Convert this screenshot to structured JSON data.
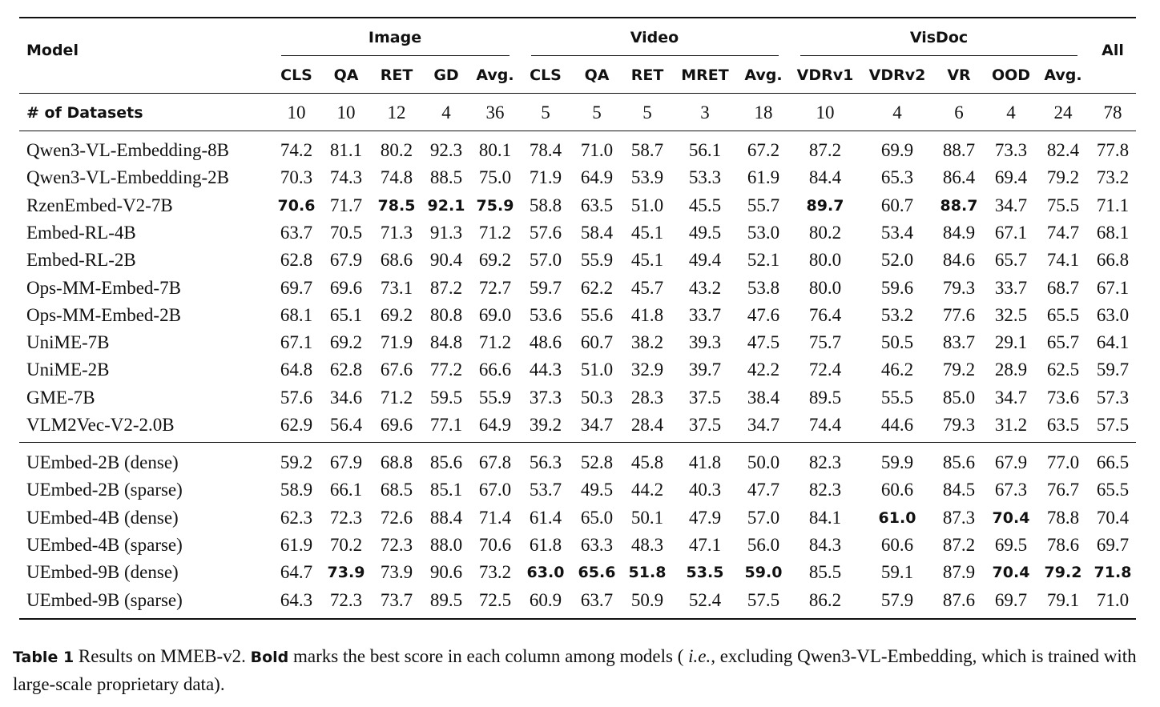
{
  "header": {
    "model": "Model",
    "all": "All",
    "groups": [
      {
        "label": "Image",
        "columns": [
          "CLS",
          "QA",
          "RET",
          "GD",
          "Avg."
        ]
      },
      {
        "label": "Video",
        "columns": [
          "CLS",
          "QA",
          "RET",
          "MRET",
          "Avg."
        ]
      },
      {
        "label": "VisDoc",
        "columns": [
          "VDRv1",
          "VDRv2",
          "VR",
          "OOD",
          "Avg."
        ]
      }
    ]
  },
  "datasets_row": {
    "label": "# of Datasets",
    "values": [
      "10",
      "10",
      "12",
      "4",
      "36",
      "5",
      "5",
      "5",
      "3",
      "18",
      "10",
      "4",
      "6",
      "4",
      "24",
      "78"
    ]
  },
  "sections": [
    {
      "rows": [
        {
          "model": "Qwen3-VL-Embedding-8B",
          "values": [
            "74.2",
            "81.1",
            "80.2",
            "92.3",
            "80.1",
            "78.4",
            "71.0",
            "58.7",
            "56.1",
            "67.2",
            "87.2",
            "69.9",
            "88.7",
            "73.3",
            "82.4",
            "77.8"
          ],
          "bold": []
        },
        {
          "model": "Qwen3-VL-Embedding-2B",
          "values": [
            "70.3",
            "74.3",
            "74.8",
            "88.5",
            "75.0",
            "71.9",
            "64.9",
            "53.9",
            "53.3",
            "61.9",
            "84.4",
            "65.3",
            "86.4",
            "69.4",
            "79.2",
            "73.2"
          ],
          "bold": []
        },
        {
          "model": "RzenEmbed-V2-7B",
          "values": [
            "70.6",
            "71.7",
            "78.5",
            "92.1",
            "75.9",
            "58.8",
            "63.5",
            "51.0",
            "45.5",
            "55.7",
            "89.7",
            "60.7",
            "88.7",
            "34.7",
            "75.5",
            "71.1"
          ],
          "bold": [
            0,
            2,
            3,
            4,
            10,
            12
          ]
        },
        {
          "model": "Embed-RL-4B",
          "values": [
            "63.7",
            "70.5",
            "71.3",
            "91.3",
            "71.2",
            "57.6",
            "58.4",
            "45.1",
            "49.5",
            "53.0",
            "80.2",
            "53.4",
            "84.9",
            "67.1",
            "74.7",
            "68.1"
          ],
          "bold": []
        },
        {
          "model": "Embed-RL-2B",
          "values": [
            "62.8",
            "67.9",
            "68.6",
            "90.4",
            "69.2",
            "57.0",
            "55.9",
            "45.1",
            "49.4",
            "52.1",
            "80.0",
            "52.0",
            "84.6",
            "65.7",
            "74.1",
            "66.8"
          ],
          "bold": []
        },
        {
          "model": "Ops-MM-Embed-7B",
          "values": [
            "69.7",
            "69.6",
            "73.1",
            "87.2",
            "72.7",
            "59.7",
            "62.2",
            "45.7",
            "43.2",
            "53.8",
            "80.0",
            "59.6",
            "79.3",
            "33.7",
            "68.7",
            "67.1"
          ],
          "bold": []
        },
        {
          "model": "Ops-MM-Embed-2B",
          "values": [
            "68.1",
            "65.1",
            "69.2",
            "80.8",
            "69.0",
            "53.6",
            "55.6",
            "41.8",
            "33.7",
            "47.6",
            "76.4",
            "53.2",
            "77.6",
            "32.5",
            "65.5",
            "63.0"
          ],
          "bold": []
        },
        {
          "model": "UniME-7B",
          "values": [
            "67.1",
            "69.2",
            "71.9",
            "84.8",
            "71.2",
            "48.6",
            "60.7",
            "38.2",
            "39.3",
            "47.5",
            "75.7",
            "50.5",
            "83.7",
            "29.1",
            "65.7",
            "64.1"
          ],
          "bold": []
        },
        {
          "model": "UniME-2B",
          "values": [
            "64.8",
            "62.8",
            "67.6",
            "77.2",
            "66.6",
            "44.3",
            "51.0",
            "32.9",
            "39.7",
            "42.2",
            "72.4",
            "46.2",
            "79.2",
            "28.9",
            "62.5",
            "59.7"
          ],
          "bold": []
        },
        {
          "model": "GME-7B",
          "values": [
            "57.6",
            "34.6",
            "71.2",
            "59.5",
            "55.9",
            "37.3",
            "50.3",
            "28.3",
            "37.5",
            "38.4",
            "89.5",
            "55.5",
            "85.0",
            "34.7",
            "73.6",
            "57.3"
          ],
          "bold": []
        },
        {
          "model": "VLM2Vec-V2-2.0B",
          "values": [
            "62.9",
            "56.4",
            "69.6",
            "77.1",
            "64.9",
            "39.2",
            "34.7",
            "28.4",
            "37.5",
            "34.7",
            "74.4",
            "44.6",
            "79.3",
            "31.2",
            "63.5",
            "57.5"
          ],
          "bold": []
        }
      ]
    },
    {
      "rows": [
        {
          "model": "UEmbed-2B (dense)",
          "values": [
            "59.2",
            "67.9",
            "68.8",
            "85.6",
            "67.8",
            "56.3",
            "52.8",
            "45.8",
            "41.8",
            "50.0",
            "82.3",
            "59.9",
            "85.6",
            "67.9",
            "77.0",
            "66.5"
          ],
          "bold": []
        },
        {
          "model": "UEmbed-2B (sparse)",
          "values": [
            "58.9",
            "66.1",
            "68.5",
            "85.1",
            "67.0",
            "53.7",
            "49.5",
            "44.2",
            "40.3",
            "47.7",
            "82.3",
            "60.6",
            "84.5",
            "67.3",
            "76.7",
            "65.5"
          ],
          "bold": []
        },
        {
          "model": "UEmbed-4B (dense)",
          "values": [
            "62.3",
            "72.3",
            "72.6",
            "88.4",
            "71.4",
            "61.4",
            "65.0",
            "50.1",
            "47.9",
            "57.0",
            "84.1",
            "61.0",
            "87.3",
            "70.4",
            "78.8",
            "70.4"
          ],
          "bold": [
            11,
            13
          ]
        },
        {
          "model": "UEmbed-4B (sparse)",
          "values": [
            "61.9",
            "70.2",
            "72.3",
            "88.0",
            "70.6",
            "61.8",
            "63.3",
            "48.3",
            "47.1",
            "56.0",
            "84.3",
            "60.6",
            "87.2",
            "69.5",
            "78.6",
            "69.7"
          ],
          "bold": []
        },
        {
          "model": "UEmbed-9B (dense)",
          "values": [
            "64.7",
            "73.9",
            "73.9",
            "90.6",
            "73.2",
            "63.0",
            "65.6",
            "51.8",
            "53.5",
            "59.0",
            "85.5",
            "59.1",
            "87.9",
            "70.4",
            "79.2",
            "71.8"
          ],
          "bold": [
            1,
            5,
            6,
            7,
            8,
            9,
            13,
            14,
            15
          ]
        },
        {
          "model": "UEmbed-9B (sparse)",
          "values": [
            "64.3",
            "72.3",
            "73.7",
            "89.5",
            "72.5",
            "60.9",
            "63.7",
            "50.9",
            "52.4",
            "57.5",
            "86.2",
            "57.9",
            "87.6",
            "69.7",
            "79.1",
            "71.0"
          ],
          "bold": []
        }
      ]
    }
  ],
  "caption": [
    {
      "text": "Table 1",
      "style": "label"
    },
    {
      "text": "Results on MMEB-v2.",
      "style": "plain"
    },
    {
      "text": "Bold",
      "style": "bold"
    },
    {
      "text": "marks the best score in each column among models (",
      "style": "plain"
    },
    {
      "text": "i.e.,",
      "style": "italic"
    },
    {
      "text": "excluding Qwen3-VL-Embedding, which is trained with large-scale proprietary data).",
      "style": "plain"
    }
  ]
}
